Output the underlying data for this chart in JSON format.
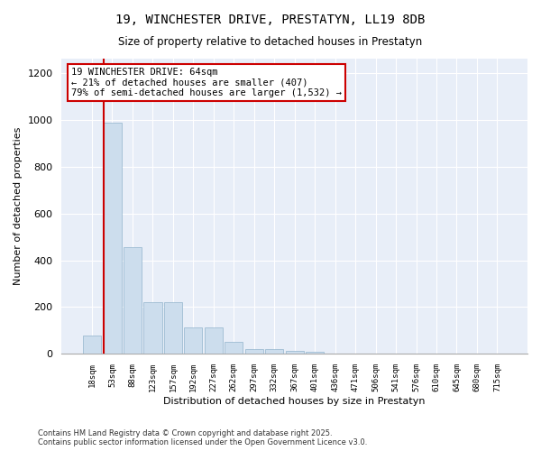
{
  "title": "19, WINCHESTER DRIVE, PRESTATYN, LL19 8DB",
  "subtitle": "Size of property relative to detached houses in Prestatyn",
  "xlabel": "Distribution of detached houses by size in Prestatyn",
  "ylabel": "Number of detached properties",
  "bar_labels": [
    "18sqm",
    "53sqm",
    "88sqm",
    "123sqm",
    "157sqm",
    "192sqm",
    "227sqm",
    "262sqm",
    "297sqm",
    "332sqm",
    "367sqm",
    "401sqm",
    "436sqm",
    "471sqm",
    "506sqm",
    "541sqm",
    "576sqm",
    "610sqm",
    "645sqm",
    "680sqm",
    "715sqm"
  ],
  "bar_values": [
    80,
    985,
    455,
    220,
    220,
    115,
    115,
    50,
    22,
    22,
    12,
    8,
    0,
    0,
    0,
    0,
    0,
    0,
    0,
    0,
    0
  ],
  "bar_color": "#ccdded",
  "bar_edge_color": "#92b4cc",
  "red_line_x": 1.0,
  "annotation_text": "19 WINCHESTER DRIVE: 64sqm\n← 21% of detached houses are smaller (407)\n79% of semi-detached houses are larger (1,532) →",
  "annotation_box_facecolor": "#ffffff",
  "annotation_box_edgecolor": "#cc0000",
  "ylim": [
    0,
    1260
  ],
  "yticks": [
    0,
    200,
    400,
    600,
    800,
    1000,
    1200
  ],
  "fig_background": "#ffffff",
  "plot_background": "#e8eef8",
  "grid_color": "#ffffff",
  "footer_line1": "Contains HM Land Registry data © Crown copyright and database right 2025.",
  "footer_line2": "Contains public sector information licensed under the Open Government Licence v3.0."
}
